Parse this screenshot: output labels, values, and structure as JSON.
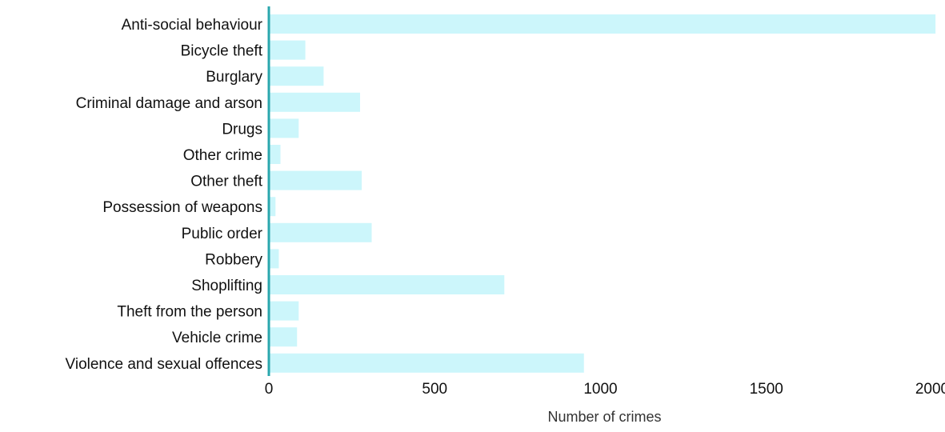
{
  "chart_data": {
    "type": "bar",
    "orientation": "horizontal",
    "title": "",
    "xlabel": "Number of crimes",
    "ylabel": "",
    "categories": [
      "Anti-social behaviour",
      "Bicycle theft",
      "Burglary",
      "Criminal damage and arson",
      "Drugs",
      "Other crime",
      "Other theft",
      "Possession of weapons",
      "Public order",
      "Robbery",
      "Shoplifting",
      "Theft from the person",
      "Vehicle crime",
      "Violence and sexual offences"
    ],
    "values": [
      2010,
      110,
      165,
      275,
      90,
      35,
      280,
      20,
      310,
      30,
      710,
      90,
      85,
      950
    ],
    "xlim": [
      0,
      2000
    ],
    "xticks": [
      0,
      500,
      1000,
      1500,
      2000
    ],
    "xtick_labels": [
      "0",
      "500",
      "1000",
      "1500",
      "2000"
    ],
    "grid": false,
    "legend": "none",
    "colors": {
      "bar": "#ccf6fb",
      "axis_line": "#2aa7ad"
    }
  }
}
